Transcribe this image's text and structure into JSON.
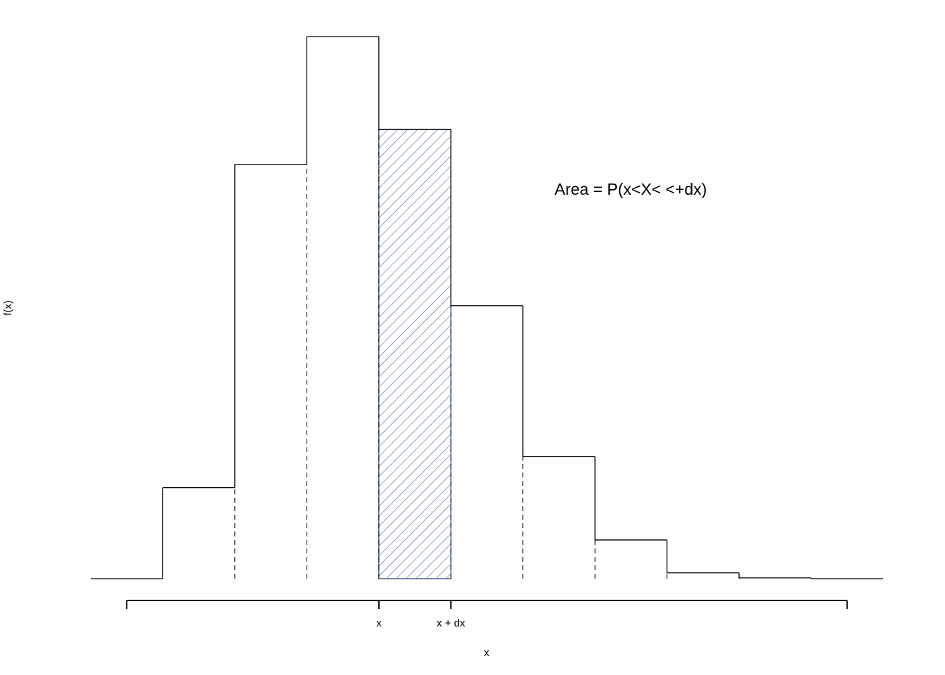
{
  "chart_data": {
    "type": "histogram",
    "annotation": "Area = P(x<X< <+dx)",
    "xlabel": "x",
    "ylabel": "f(x)",
    "bins": [
      0,
      1,
      2,
      3,
      4,
      5,
      6,
      7,
      8,
      9,
      10
    ],
    "values": [
      0.047,
      0.214,
      0.28,
      0.232,
      0.141,
      0.063,
      0.02,
      0.003,
      0.0004,
      0
    ],
    "highlight": 3,
    "highlight_color": "#2b4f72",
    "xlim": [
      -1,
      10
    ],
    "ylim": [
      0,
      0.28
    ],
    "xticks": [
      {
        "value": -0.5,
        "label": null
      },
      {
        "value": 3,
        "label": "x"
      },
      {
        "value": 4,
        "label": "x + dx"
      },
      {
        "value": 9.5,
        "label": null
      }
    ]
  }
}
